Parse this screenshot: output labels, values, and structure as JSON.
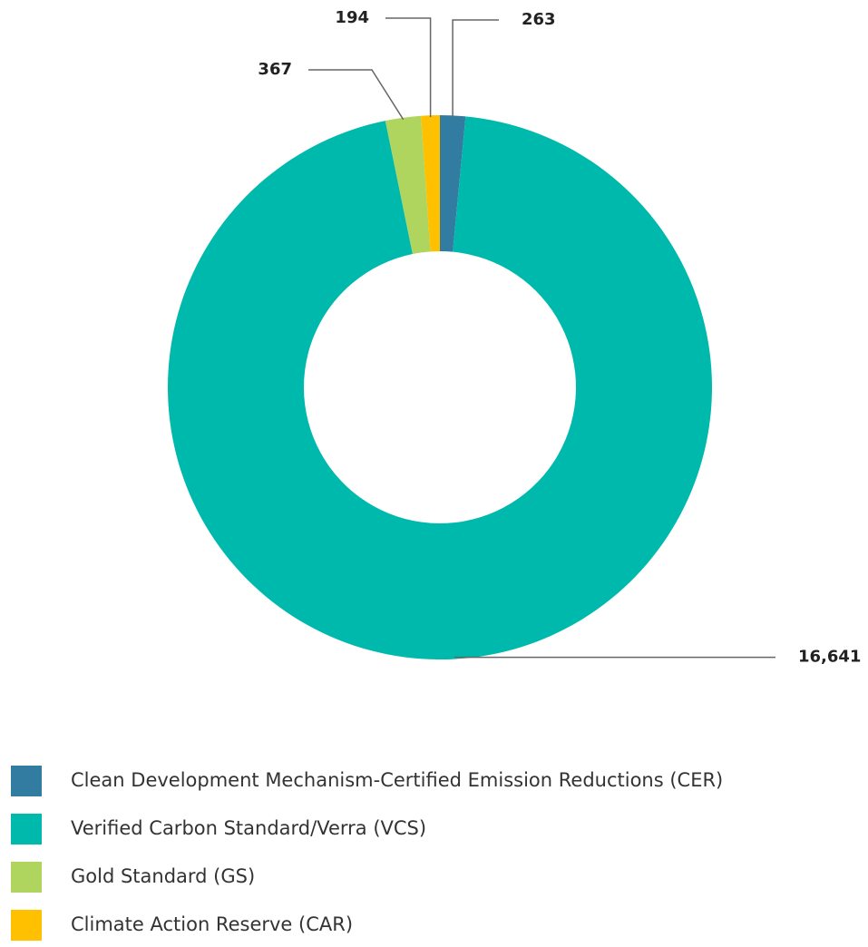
{
  "chart_data": {
    "type": "donut",
    "categories": [
      "Clean Development Mechanism-Certified Emission Reductions (CER)",
      "Verified Carbon Standard/Verra (VCS)",
      "Gold Standard (GS)",
      "Climate Action Reserve (CAR)"
    ],
    "values": [
      263,
      16641,
      367,
      194
    ],
    "value_labels": [
      "263",
      "16,641",
      "367",
      "194"
    ],
    "colors": [
      "#317ca0",
      "#00b9ad",
      "#b0d55f",
      "#ffc000"
    ]
  }
}
